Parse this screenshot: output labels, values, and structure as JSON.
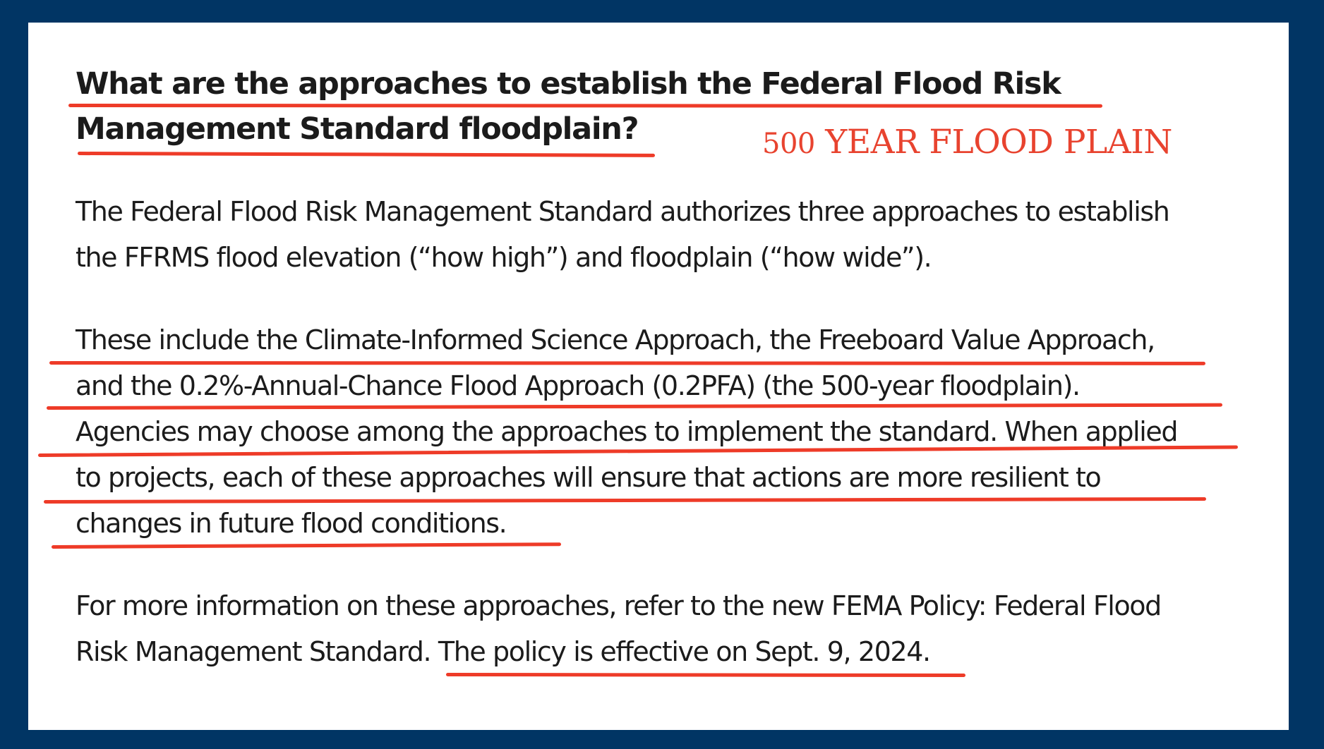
{
  "heading": {
    "line1": "What are the approaches to establish the Federal Flood Risk",
    "line2": "Management Standard floodplain?"
  },
  "annotation": {
    "number": "500",
    "text": " YEAR FLOOD PLAIN"
  },
  "paragraph1": {
    "line1": "The Federal Flood Risk Management Standard authorizes three approaches to establish",
    "line2": "the FFRMS flood elevation (“how high”) and floodplain (“how wide”)."
  },
  "paragraph2": {
    "line1": "These include the Climate-Informed Science Approach, the Freeboard Value Approach,",
    "line2": "and the 0.2%-Annual-Chance Flood Approach (0.2PFA) (the 500-year floodplain).",
    "line3": "Agencies may choose among the approaches to implement the standard.  When applied",
    "line4": "to projects, each of these approaches will ensure that actions are more resilient to",
    "line5": "changes in future flood conditions."
  },
  "paragraph3": {
    "line1": "For more information on these approaches, refer to the new FEMA Policy: Federal Flood",
    "line2a": "Risk Management Standard. ",
    "line2b": "The policy is effective on Sept. 9, 2024."
  },
  "colors": {
    "background": "#013564",
    "card": "#ffffff",
    "text": "#1b1b1b",
    "annotation": "#e8432f",
    "underline": "#ee3b28"
  }
}
